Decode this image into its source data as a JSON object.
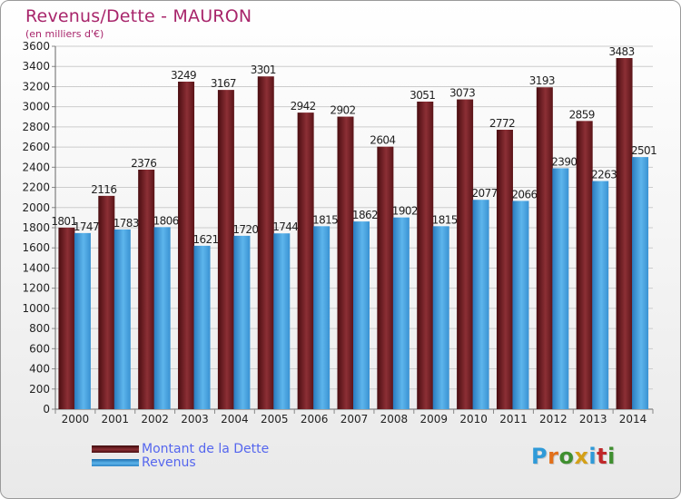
{
  "title": "Revenus/Dette - MAURON",
  "subtitle": "(en milliers d'€)",
  "logo": {
    "text": "Proxiti",
    "colors": [
      "#2f9ad8",
      "#e2701a",
      "#3f8f2f",
      "#d4a017",
      "#2f9ad8",
      "#c0282a",
      "#3f8f2f"
    ]
  },
  "chart_data": {
    "type": "bar",
    "title": "Revenus/Dette - MAURON",
    "ylabel": "(en milliers d'€)",
    "xlabel": "",
    "ylim": [
      0,
      3600
    ],
    "yticks": [
      0,
      200,
      400,
      600,
      800,
      1000,
      1200,
      1400,
      1600,
      1800,
      2000,
      2200,
      2400,
      2600,
      2800,
      3000,
      3200,
      3400,
      3600
    ],
    "grid": true,
    "legend_position": "bottom-left",
    "categories": [
      "2000",
      "2001",
      "2002",
      "2003",
      "2004",
      "2005",
      "2006",
      "2007",
      "2008",
      "2009",
      "2010",
      "2011",
      "2012",
      "2013",
      "2014"
    ],
    "series": [
      {
        "name": "Montant de la Dette",
        "color": "#7a1f24",
        "values": [
          1801,
          2116,
          2376,
          3249,
          3167,
          3301,
          2942,
          2902,
          2604,
          3051,
          3073,
          2772,
          3193,
          2859,
          3483
        ]
      },
      {
        "name": "Revenus",
        "color": "#4aa3e0",
        "values": [
          1747,
          1783,
          1806,
          1621,
          1720,
          1744,
          1815,
          1862,
          1902,
          1815,
          2077,
          2066,
          2390,
          2263,
          2501
        ]
      }
    ]
  }
}
